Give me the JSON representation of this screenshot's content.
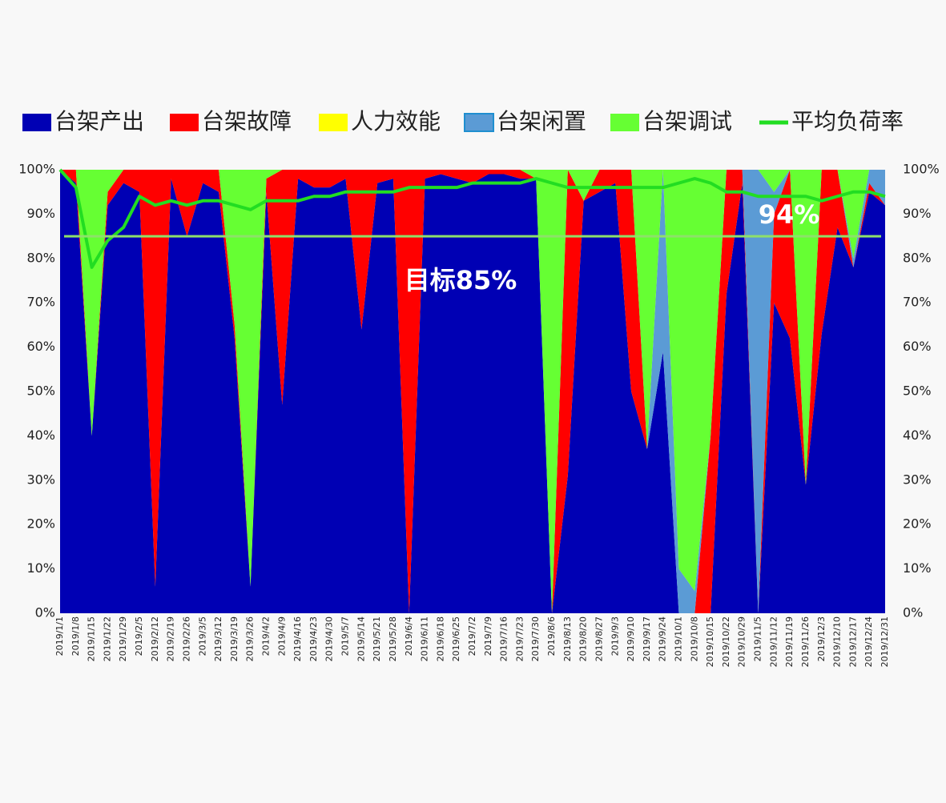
{
  "chart_data": {
    "type": "area",
    "categories": [
      "2019/1/1",
      "2019/1/8",
      "2019/1/15",
      "2019/1/22",
      "2019/1/29",
      "2019/2/5",
      "2019/2/12",
      "2019/2/19",
      "2019/2/26",
      "2019/3/5",
      "2019/3/12",
      "2019/3/19",
      "2019/3/26",
      "2019/4/2",
      "2019/4/9",
      "2019/4/16",
      "2019/4/23",
      "2019/4/30",
      "2019/5/7",
      "2019/5/14",
      "2019/5/21",
      "2019/5/28",
      "2019/6/4",
      "2019/6/11",
      "2019/6/18",
      "2019/6/25",
      "2019/7/2",
      "2019/7/9",
      "2019/7/16",
      "2019/7/23",
      "2019/7/30",
      "2019/8/6",
      "2019/8/13",
      "2019/8/20",
      "2019/8/27",
      "2019/9/3",
      "2019/9/10",
      "2019/9/17",
      "2019/9/24",
      "2019/10/1",
      "2019/10/8",
      "2019/10/15",
      "2019/10/22",
      "2019/10/29",
      "2019/11/5",
      "2019/11/12",
      "2019/11/19",
      "2019/11/26",
      "2019/12/3",
      "2019/12/10",
      "2019/12/17",
      "2019/12/24",
      "2019/12/31"
    ],
    "series": [
      {
        "name": "台架产出",
        "color": "#0000b4",
        "values": [
          100,
          97,
          40,
          92,
          97,
          95,
          6,
          98,
          85,
          97,
          95,
          62,
          6,
          95,
          47,
          98,
          96,
          96,
          98,
          64,
          97,
          98,
          0,
          98,
          99,
          98,
          97,
          99,
          99,
          98,
          98,
          0,
          31,
          93,
          95,
          97,
          50,
          37,
          59,
          0,
          0,
          0,
          72,
          97,
          0,
          70,
          62,
          29,
          63,
          87,
          78,
          95,
          92
        ]
      },
      {
        "name": "台架故障",
        "color": "#ff0000",
        "values": [
          0,
          3,
          0,
          3,
          3,
          5,
          94,
          2,
          15,
          3,
          5,
          3,
          0,
          3,
          53,
          2,
          4,
          4,
          2,
          36,
          3,
          2,
          100,
          2,
          1,
          2,
          3,
          1,
          1,
          2,
          0,
          0,
          69,
          0,
          5,
          3,
          50,
          0,
          0,
          0,
          0,
          40,
          28,
          3,
          0,
          20,
          38,
          0,
          37,
          13,
          0,
          2,
          0
        ]
      },
      {
        "name": "人力效能",
        "color": "#ffff00",
        "values": [
          0,
          0,
          0,
          0,
          0,
          0,
          0,
          0,
          0,
          0,
          0,
          0,
          0,
          0,
          0,
          0,
          0,
          0,
          0,
          0,
          0,
          0,
          0,
          0,
          0,
          0,
          0,
          0,
          0,
          0,
          0,
          0,
          0,
          0,
          0,
          0,
          0,
          0,
          0,
          0,
          0,
          0,
          0,
          0,
          0,
          0,
          0,
          0,
          0,
          0,
          0,
          0,
          0
        ]
      },
      {
        "name": "台架闲置",
        "color": "#5b9bd5",
        "values": [
          0,
          0,
          0,
          0,
          0,
          0,
          0,
          0,
          0,
          0,
          0,
          0,
          0,
          0,
          0,
          0,
          0,
          0,
          0,
          0,
          0,
          0,
          0,
          0,
          0,
          0,
          0,
          0,
          0,
          0,
          0,
          0,
          0,
          0,
          0,
          0,
          0,
          0,
          41,
          10,
          5,
          0,
          0,
          0,
          100,
          5,
          0,
          0,
          0,
          0,
          2,
          3,
          8
        ]
      },
      {
        "name": "台架调试",
        "color": "#66ff33",
        "values": [
          0,
          0,
          60,
          5,
          0,
          0,
          0,
          0,
          0,
          0,
          0,
          35,
          94,
          2,
          0,
          0,
          0,
          0,
          0,
          0,
          0,
          0,
          0,
          0,
          0,
          0,
          0,
          0,
          0,
          0,
          2,
          100,
          0,
          7,
          0,
          0,
          0,
          63,
          0,
          90,
          95,
          60,
          0,
          0,
          0,
          5,
          0,
          71,
          0,
          0,
          20,
          0,
          0
        ]
      },
      {
        "name": "平均负荷率",
        "color": "#22dd22",
        "type": "line",
        "axis": "y2",
        "values": [
          100,
          96,
          78,
          84,
          87,
          94,
          92,
          93,
          92,
          93,
          93,
          92,
          91,
          93,
          93,
          93,
          94,
          94,
          95,
          95,
          95,
          95,
          96,
          96,
          96,
          96,
          97,
          97,
          97,
          97,
          98,
          97,
          96,
          96,
          96,
          96,
          96,
          96,
          96,
          97,
          98,
          97,
          95,
          95,
          94,
          94,
          94,
          94,
          93,
          94,
          95,
          95,
          94
        ]
      }
    ],
    "ylim": [
      0,
      100
    ],
    "yticks": [
      {
        "value": 0,
        "label": "0%"
      },
      {
        "value": 10,
        "label": "10%"
      },
      {
        "value": 20,
        "label": "20%"
      },
      {
        "value": 30,
        "label": "30%"
      },
      {
        "value": 40,
        "label": "40%"
      },
      {
        "value": 50,
        "label": "50%"
      },
      {
        "value": 60,
        "label": "60%"
      },
      {
        "value": 70,
        "label": "70%"
      },
      {
        "value": 80,
        "label": "80%"
      },
      {
        "value": 90,
        "label": "90%"
      },
      {
        "value": 100,
        "label": "100%"
      }
    ],
    "y2lim": [
      0,
      100
    ],
    "y2ticks": [
      {
        "value": 0,
        "label": "0%"
      },
      {
        "value": 10,
        "label": "10%"
      },
      {
        "value": 20,
        "label": "20%"
      },
      {
        "value": 30,
        "label": "30%"
      },
      {
        "value": 40,
        "label": "40%"
      },
      {
        "value": 50,
        "label": "50%"
      },
      {
        "value": 60,
        "label": "60%"
      },
      {
        "value": 70,
        "label": "70%"
      },
      {
        "value": 80,
        "label": "80%"
      },
      {
        "value": 90,
        "label": "90%"
      },
      {
        "value": 100,
        "label": "100%"
      }
    ],
    "target": {
      "value": 85,
      "label": "目标85%",
      "color": "#8ee06a"
    },
    "end_label": "94%",
    "legend": "top"
  }
}
